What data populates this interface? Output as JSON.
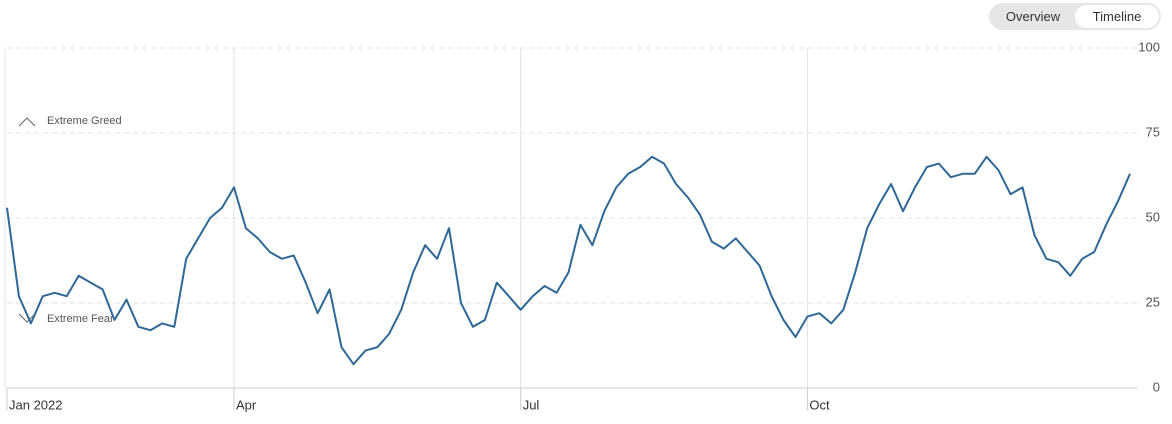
{
  "toggle": {
    "options": [
      "Overview",
      "Timeline"
    ],
    "selected_index": 1
  },
  "chart_data": {
    "type": "line",
    "categories": [
      "Jan 2022",
      null,
      null,
      null,
      null,
      null,
      null,
      null,
      null,
      null,
      null,
      null,
      null,
      null,
      null,
      null,
      null,
      null,
      null,
      "Apr",
      null,
      null,
      null,
      null,
      null,
      null,
      null,
      null,
      null,
      null,
      null,
      null,
      null,
      null,
      null,
      null,
      null,
      null,
      null,
      null,
      null,
      null,
      null,
      "Jul",
      null,
      null,
      null,
      null,
      null,
      null,
      null,
      null,
      null,
      null,
      null,
      null,
      null,
      null,
      null,
      null,
      null,
      null,
      null,
      null,
      null,
      null,
      null,
      "Oct",
      null,
      null,
      null,
      null,
      null,
      null,
      null,
      null,
      null,
      null,
      null,
      null,
      null,
      null,
      null,
      null,
      null,
      null,
      null,
      null,
      null,
      null,
      null,
      null,
      null,
      null,
      null
    ],
    "series": [
      {
        "color": "#2d6896",
        "values": [
          53,
          27,
          19,
          27,
          28,
          27,
          33,
          31,
          29,
          20,
          26,
          18,
          17,
          19,
          18,
          38,
          44,
          50,
          53,
          59,
          47,
          44,
          40,
          38,
          39,
          31,
          22,
          29,
          12,
          7,
          11,
          12,
          16,
          23,
          34,
          42,
          38,
          47,
          25,
          18,
          20,
          31,
          27,
          23,
          27,
          30,
          28,
          34,
          48,
          42,
          52,
          59,
          63,
          65,
          68,
          66,
          60,
          56,
          51,
          43,
          41,
          44,
          40,
          36,
          27,
          20,
          15,
          21,
          22,
          19,
          23,
          34,
          47,
          54,
          60,
          52,
          59,
          65,
          66,
          62,
          63,
          63,
          68,
          64,
          57,
          59,
          45,
          38,
          37,
          33,
          38,
          40,
          48,
          55,
          63
        ]
      }
    ],
    "ylim": [
      0,
      100
    ],
    "yticks": [
      0,
      25,
      50,
      75,
      100
    ],
    "grid": true,
    "annotations": [
      "Extreme Greed",
      "Extreme Fear"
    ]
  }
}
